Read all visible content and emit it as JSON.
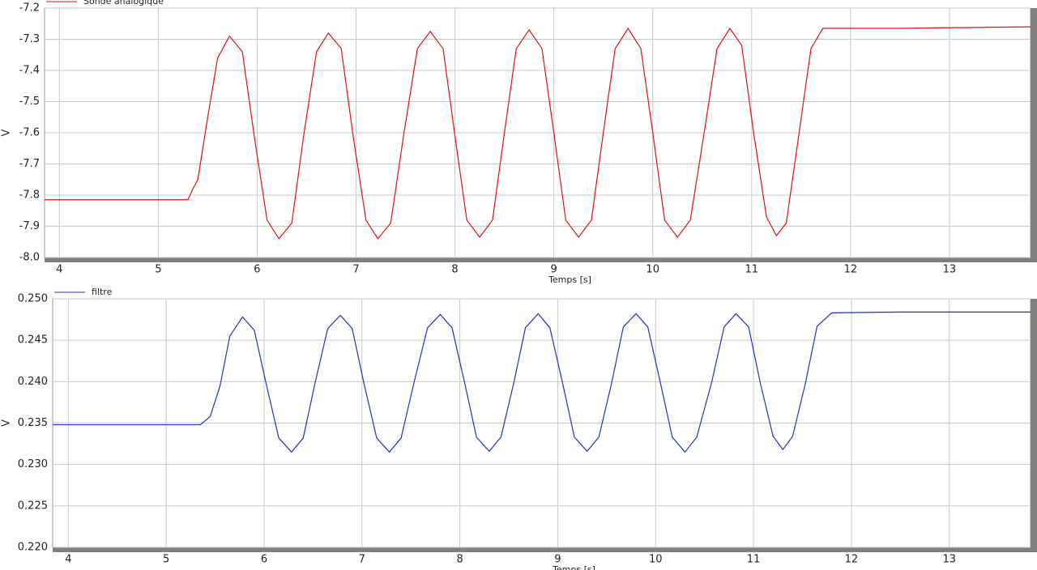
{
  "chart_data": [
    {
      "type": "line",
      "xlabel": "Temps [s]",
      "ylabel": "V",
      "grid": true,
      "legend": "top-left",
      "x": [
        3.85,
        5.3,
        5.35,
        5.4,
        5.5,
        5.6,
        5.72,
        5.85,
        5.97,
        6.1,
        6.22,
        6.35,
        6.47,
        6.6,
        6.72,
        6.85,
        6.97,
        7.1,
        7.22,
        7.35,
        7.48,
        7.62,
        7.75,
        7.88,
        8.0,
        8.12,
        8.25,
        8.38,
        8.5,
        8.62,
        8.75,
        8.88,
        9.0,
        9.12,
        9.25,
        9.38,
        9.5,
        9.62,
        9.75,
        9.88,
        10.0,
        10.12,
        10.25,
        10.38,
        10.52,
        10.65,
        10.78,
        10.9,
        11.02,
        11.15,
        11.25,
        11.35,
        11.48,
        11.6,
        11.72,
        12.5,
        13.82
      ],
      "series": [
        {
          "name": "Sonde analogique",
          "color": "#e01010",
          "values": [
            -7.815,
            -7.815,
            -7.78,
            -7.75,
            -7.55,
            -7.36,
            -7.29,
            -7.34,
            -7.61,
            -7.88,
            -7.94,
            -7.89,
            -7.61,
            -7.34,
            -7.28,
            -7.33,
            -7.61,
            -7.88,
            -7.94,
            -7.89,
            -7.61,
            -7.33,
            -7.275,
            -7.33,
            -7.61,
            -7.88,
            -7.935,
            -7.88,
            -7.6,
            -7.33,
            -7.27,
            -7.33,
            -7.6,
            -7.88,
            -7.935,
            -7.88,
            -7.6,
            -7.33,
            -7.265,
            -7.33,
            -7.6,
            -7.88,
            -7.935,
            -7.88,
            -7.6,
            -7.33,
            -7.265,
            -7.32,
            -7.6,
            -7.87,
            -7.93,
            -7.89,
            -7.6,
            -7.33,
            -7.265,
            -7.265,
            -7.26
          ]
        }
      ],
      "xlim": [
        3.85,
        13.82
      ],
      "xticks": [
        4,
        5,
        6,
        7,
        8,
        9,
        10,
        11,
        12,
        13
      ],
      "ylim": [
        -8.0,
        -7.2
      ],
      "yticks": [
        {
          "value": -8.0,
          "label": "-8.0"
        },
        -7.9,
        -7.8,
        -7.7,
        -7.6,
        -7.5,
        -7.4,
        -7.3,
        -7.2
      ]
    },
    {
      "type": "line",
      "xlabel": "Temps [s]",
      "ylabel": "V",
      "grid": true,
      "legend": "top-left",
      "x": [
        3.84,
        5.35,
        5.45,
        5.55,
        5.65,
        5.78,
        5.9,
        6.02,
        6.15,
        6.28,
        6.4,
        6.52,
        6.65,
        6.78,
        6.9,
        7.02,
        7.15,
        7.28,
        7.4,
        7.53,
        7.67,
        7.8,
        7.92,
        8.05,
        8.17,
        8.3,
        8.42,
        8.55,
        8.67,
        8.8,
        8.92,
        9.05,
        9.17,
        9.3,
        9.42,
        9.55,
        9.67,
        9.8,
        9.92,
        10.05,
        10.17,
        10.3,
        10.42,
        10.57,
        10.7,
        10.82,
        10.95,
        11.07,
        11.2,
        11.3,
        11.4,
        11.53,
        11.65,
        11.8,
        12.5,
        13.83
      ],
      "series": [
        {
          "name": "filtre",
          "color": "#2030c8",
          "values": [
            0.2348,
            0.2348,
            0.2358,
            0.2395,
            0.2455,
            0.2478,
            0.2462,
            0.2398,
            0.2332,
            0.2315,
            0.2332,
            0.2398,
            0.2464,
            0.248,
            0.2464,
            0.2398,
            0.2332,
            0.2315,
            0.2332,
            0.2398,
            0.2465,
            0.2481,
            0.2465,
            0.2398,
            0.2333,
            0.2316,
            0.2333,
            0.2398,
            0.2465,
            0.2482,
            0.2465,
            0.2398,
            0.2333,
            0.2316,
            0.2333,
            0.2398,
            0.2466,
            0.2482,
            0.2466,
            0.2398,
            0.2333,
            0.2315,
            0.2333,
            0.2398,
            0.2466,
            0.2482,
            0.2466,
            0.2398,
            0.2334,
            0.2318,
            0.2334,
            0.2398,
            0.2467,
            0.2483,
            0.2484,
            0.2484
          ]
        }
      ],
      "xlim": [
        3.84,
        13.83
      ],
      "xticks": [
        4,
        5,
        6,
        7,
        8,
        9,
        10,
        11,
        12,
        13
      ],
      "ylim": [
        0.22,
        0.25
      ],
      "yticks": [
        {
          "value": 0.22,
          "label": "0.220"
        },
        0.225,
        {
          "value": 0.23,
          "label": "0.230"
        },
        0.235,
        {
          "value": 0.24,
          "label": "0.240"
        },
        0.245,
        {
          "value": 0.25,
          "label": "0.250"
        }
      ]
    }
  ]
}
